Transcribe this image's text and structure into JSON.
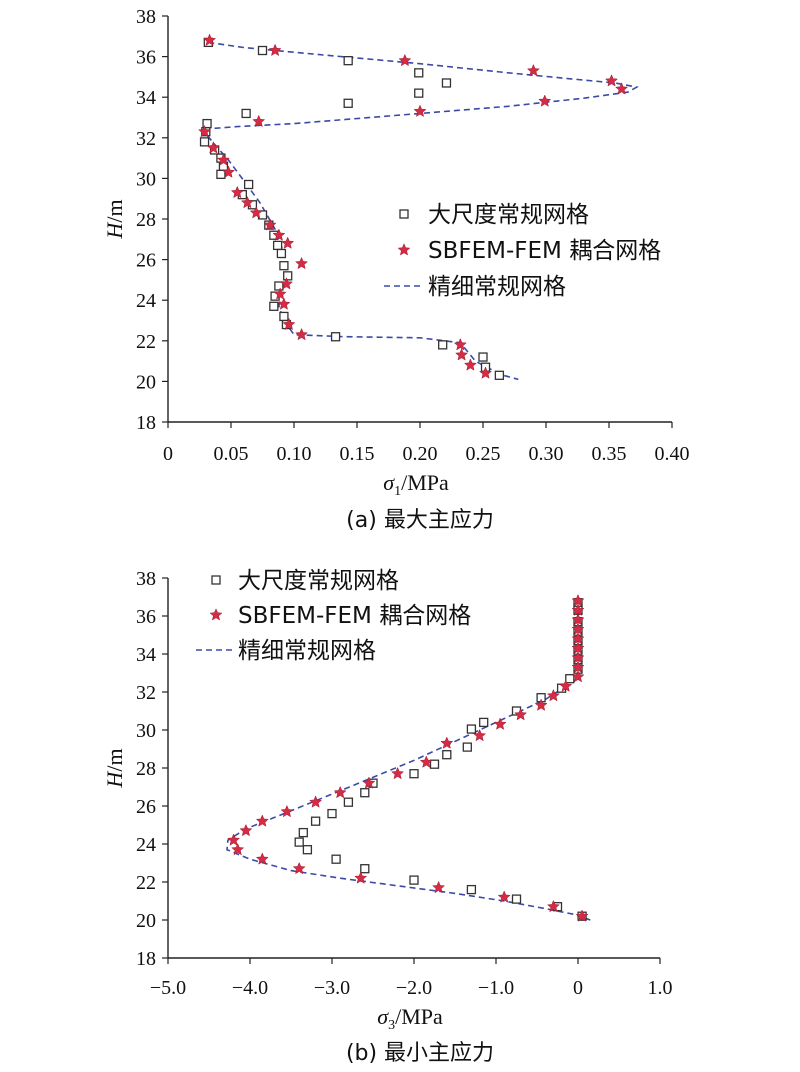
{
  "chart_data": [
    {
      "type": "scatter",
      "caption": "(a) 最大主应力",
      "xlabel_sym": "σ",
      "xlabel_sub": "1",
      "xlabel_unit": "/MPa",
      "ylabel_sym": "H",
      "ylabel_unit": "/m",
      "xlim": [
        0,
        0.4
      ],
      "ylim": [
        18,
        38
      ],
      "xticks": [
        "0",
        "0.05",
        "0.10",
        "0.15",
        "0.20",
        "0.25",
        "0.30",
        "0.35",
        "0.40"
      ],
      "xtick_values": [
        0,
        0.05,
        0.1,
        0.15,
        0.2,
        0.25,
        0.3,
        0.35,
        0.4
      ],
      "yticks": [
        "18",
        "20",
        "22",
        "24",
        "26",
        "28",
        "30",
        "32",
        "34",
        "36",
        "38"
      ],
      "ytick_values": [
        18,
        20,
        22,
        24,
        26,
        28,
        30,
        32,
        34,
        36,
        38
      ],
      "legend_position": "center-right",
      "series": [
        {
          "name": "大尺度常规网格",
          "marker": "square",
          "points": [
            [
              0.032,
              36.7
            ],
            [
              0.075,
              36.3
            ],
            [
              0.143,
              35.8
            ],
            [
              0.199,
              35.2
            ],
            [
              0.221,
              34.7
            ],
            [
              0.199,
              34.2
            ],
            [
              0.143,
              33.7
            ],
            [
              0.062,
              33.2
            ],
            [
              0.031,
              32.7
            ],
            [
              0.03,
              32.3
            ],
            [
              0.029,
              31.8
            ],
            [
              0.037,
              31.4
            ],
            [
              0.042,
              31.0
            ],
            [
              0.044,
              30.6
            ],
            [
              0.042,
              30.2
            ],
            [
              0.064,
              29.7
            ],
            [
              0.059,
              29.2
            ],
            [
              0.067,
              28.7
            ],
            [
              0.075,
              28.2
            ],
            [
              0.08,
              27.7
            ],
            [
              0.084,
              27.2
            ],
            [
              0.087,
              26.7
            ],
            [
              0.09,
              26.3
            ],
            [
              0.092,
              25.7
            ],
            [
              0.095,
              25.2
            ],
            [
              0.088,
              24.7
            ],
            [
              0.085,
              24.2
            ],
            [
              0.084,
              23.7
            ],
            [
              0.092,
              23.2
            ],
            [
              0.094,
              22.8
            ],
            [
              0.133,
              22.2
            ],
            [
              0.218,
              21.8
            ],
            [
              0.25,
              21.2
            ],
            [
              0.252,
              20.7
            ],
            [
              0.263,
              20.3
            ]
          ]
        },
        {
          "name": "SBFEM-FEM 耦合网格",
          "marker": "star",
          "points": [
            [
              0.033,
              36.8
            ],
            [
              0.085,
              36.3
            ],
            [
              0.188,
              35.8
            ],
            [
              0.29,
              35.3
            ],
            [
              0.352,
              34.8
            ],
            [
              0.36,
              34.4
            ],
            [
              0.299,
              33.8
            ],
            [
              0.2,
              33.3
            ],
            [
              0.072,
              32.8
            ],
            [
              0.029,
              32.3
            ],
            [
              0.036,
              31.5
            ],
            [
              0.044,
              30.9
            ],
            [
              0.048,
              30.3
            ],
            [
              0.055,
              29.3
            ],
            [
              0.063,
              28.8
            ],
            [
              0.07,
              28.3
            ],
            [
              0.081,
              27.7
            ],
            [
              0.088,
              27.2
            ],
            [
              0.095,
              26.8
            ],
            [
              0.106,
              25.8
            ],
            [
              0.094,
              24.8
            ],
            [
              0.089,
              24.3
            ],
            [
              0.092,
              23.8
            ],
            [
              0.096,
              22.8
            ],
            [
              0.106,
              22.3
            ],
            [
              0.232,
              21.8
            ],
            [
              0.233,
              21.3
            ],
            [
              0.24,
              20.8
            ],
            [
              0.252,
              20.4
            ]
          ]
        },
        {
          "name": "精细常规网格",
          "marker": "dashed-line",
          "x": [
            0.032,
            0.06,
            0.12,
            0.2,
            0.27,
            0.32,
            0.355,
            0.372,
            0.365,
            0.33,
            0.27,
            0.18,
            0.1,
            0.055,
            0.033,
            0.03,
            0.038,
            0.048,
            0.06,
            0.073,
            0.085,
            0.092,
            0.093,
            0.09,
            0.088,
            0.092,
            0.1,
            0.14,
            0.2,
            0.232,
            0.244,
            0.256,
            0.266,
            0.278
          ],
          "y": [
            36.7,
            36.45,
            36.1,
            35.65,
            35.2,
            34.9,
            34.7,
            34.5,
            34.25,
            33.95,
            33.55,
            33.1,
            32.7,
            32.55,
            32.45,
            32.2,
            31.6,
            30.9,
            29.9,
            28.8,
            27.5,
            26.3,
            25.3,
            24.5,
            23.7,
            23.0,
            22.3,
            22.2,
            22.15,
            21.9,
            21.0,
            20.6,
            20.3,
            20.1
          ]
        }
      ]
    },
    {
      "type": "scatter",
      "caption": "(b) 最小主应力",
      "xlabel_sym": "σ",
      "xlabel_sub": "3",
      "xlabel_unit": "/MPa",
      "ylabel_sym": "H",
      "ylabel_unit": "/m",
      "xlim": [
        -5.0,
        1.0
      ],
      "ylim": [
        18,
        38
      ],
      "xticks": [
        "−5.0",
        "−4.0",
        "−3.0",
        "−2.0",
        "−1.0",
        "0",
        "1.0"
      ],
      "xtick_values": [
        -5.0,
        -4.0,
        -3.0,
        -2.0,
        -1.0,
        0,
        1.0
      ],
      "yticks": [
        "18",
        "20",
        "22",
        "24",
        "26",
        "28",
        "30",
        "32",
        "34",
        "36",
        "38"
      ],
      "ytick_values": [
        18,
        20,
        22,
        24,
        26,
        28,
        30,
        32,
        34,
        36,
        38
      ],
      "legend_position": "top-left",
      "series": [
        {
          "name": "大尺度常规网格",
          "marker": "square",
          "points": [
            [
              0.0,
              36.7
            ],
            [
              0.0,
              36.3
            ],
            [
              0.0,
              35.7
            ],
            [
              0.0,
              35.2
            ],
            [
              0.0,
              34.7
            ],
            [
              0.0,
              34.2
            ],
            [
              0.0,
              33.7
            ],
            [
              0.0,
              33.2
            ],
            [
              -0.1,
              32.7
            ],
            [
              -0.2,
              32.2
            ],
            [
              -0.45,
              31.7
            ],
            [
              -0.75,
              31.0
            ],
            [
              -1.15,
              30.4
            ],
            [
              -1.3,
              30.05
            ],
            [
              -1.35,
              29.1
            ],
            [
              -1.6,
              28.7
            ],
            [
              -1.75,
              28.2
            ],
            [
              -2.0,
              27.7
            ],
            [
              -2.5,
              27.2
            ],
            [
              -2.6,
              26.7
            ],
            [
              -2.8,
              26.2
            ],
            [
              -3.0,
              25.6
            ],
            [
              -3.2,
              25.2
            ],
            [
              -3.35,
              24.6
            ],
            [
              -3.4,
              24.1
            ],
            [
              -3.3,
              23.7
            ],
            [
              -2.95,
              23.2
            ],
            [
              -2.6,
              22.7
            ],
            [
              -2.0,
              22.1
            ],
            [
              -1.3,
              21.6
            ],
            [
              -0.75,
              21.1
            ],
            [
              -0.25,
              20.7
            ],
            [
              0.05,
              20.2
            ]
          ]
        },
        {
          "name": "SBFEM-FEM 耦合网格",
          "marker": "star",
          "points": [
            [
              0.0,
              36.8
            ],
            [
              0.0,
              36.3
            ],
            [
              0.0,
              35.8
            ],
            [
              0.0,
              35.3
            ],
            [
              0.0,
              34.8
            ],
            [
              0.0,
              34.3
            ],
            [
              0.0,
              33.8
            ],
            [
              0.0,
              33.3
            ],
            [
              0.0,
              32.8
            ],
            [
              -0.15,
              32.3
            ],
            [
              -0.3,
              31.8
            ],
            [
              -0.45,
              31.3
            ],
            [
              -0.7,
              30.8
            ],
            [
              -0.95,
              30.3
            ],
            [
              -1.2,
              29.7
            ],
            [
              -1.6,
              29.3
            ],
            [
              -1.85,
              28.3
            ],
            [
              -2.2,
              27.7
            ],
            [
              -2.55,
              27.2
            ],
            [
              -2.9,
              26.7
            ],
            [
              -3.2,
              26.2
            ],
            [
              -3.55,
              25.7
            ],
            [
              -3.85,
              25.2
            ],
            [
              -4.05,
              24.7
            ],
            [
              -4.2,
              24.2
            ],
            [
              -4.15,
              23.7
            ],
            [
              -3.85,
              23.2
            ],
            [
              -3.4,
              22.7
            ],
            [
              -2.65,
              22.2
            ],
            [
              -1.7,
              21.7
            ],
            [
              -0.9,
              21.2
            ],
            [
              -0.3,
              20.7
            ],
            [
              0.05,
              20.2
            ]
          ]
        },
        {
          "name": "精细常规网格",
          "marker": "dashed-line",
          "x": [
            0.0,
            0.0,
            0.0,
            0.02,
            -0.15,
            -0.4,
            -0.8,
            -1.2,
            -1.6,
            -2.0,
            -2.45,
            -2.9,
            -3.3,
            -3.7,
            -4.05,
            -4.27,
            -4.28,
            -4.0,
            -3.5,
            -2.9,
            -2.2,
            -1.5,
            -0.9,
            -0.4,
            -0.05,
            0.15
          ],
          "y": [
            36.8,
            35.5,
            34.0,
            33.0,
            32.3,
            31.6,
            30.8,
            30.0,
            29.2,
            28.4,
            27.6,
            26.8,
            26.1,
            25.4,
            24.8,
            24.2,
            23.7,
            23.2,
            22.6,
            22.2,
            21.8,
            21.4,
            21.0,
            20.6,
            20.3,
            20.0
          ]
        }
      ]
    }
  ]
}
